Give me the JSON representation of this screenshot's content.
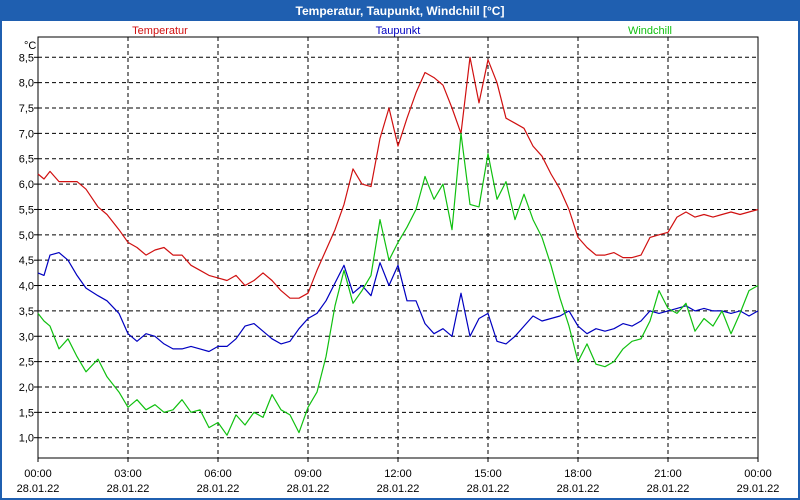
{
  "chart_data": {
    "type": "line",
    "title": "Temperatur, Taupunkt, Windchill [°C]",
    "ylabel": "°C",
    "ylim": [
      0.6,
      8.9
    ],
    "grid": true,
    "yticks": [
      1.0,
      1.5,
      2.0,
      2.5,
      3.0,
      3.5,
      4.0,
      4.5,
      5.0,
      5.5,
      6.0,
      6.5,
      7.0,
      7.5,
      8.0,
      8.5
    ],
    "ytick_labels": [
      "1,0",
      "1,5",
      "2,0",
      "2,5",
      "3,0",
      "3,5",
      "4,0",
      "4,5",
      "5,0",
      "5,5",
      "6,0",
      "6,5",
      "7,0",
      "7,5",
      "8,0",
      "8,5"
    ],
    "xlim": [
      0,
      24
    ],
    "xticks": [
      {
        "h": 0,
        "time": "00:00",
        "date": "28.01.22"
      },
      {
        "h": 3,
        "time": "03:00",
        "date": "28.01.22"
      },
      {
        "h": 6,
        "time": "06:00",
        "date": "28.01.22"
      },
      {
        "h": 9,
        "time": "09:00",
        "date": "28.01.22"
      },
      {
        "h": 12,
        "time": "12:00",
        "date": "28.01.22"
      },
      {
        "h": 15,
        "time": "15:00",
        "date": "28.01.22"
      },
      {
        "h": 18,
        "time": "18:00",
        "date": "28.01.22"
      },
      {
        "h": 21,
        "time": "21:00",
        "date": "28.01.22"
      },
      {
        "h": 24,
        "time": "00:00",
        "date": "29.01.22"
      }
    ],
    "series": [
      {
        "name": "Temperatur",
        "color": "#d01010",
        "x": [
          0,
          0.2,
          0.4,
          0.7,
          1.0,
          1.3,
          1.6,
          2.0,
          2.3,
          2.7,
          3.0,
          3.3,
          3.6,
          3.9,
          4.2,
          4.5,
          4.8,
          5.1,
          5.4,
          5.7,
          6.0,
          6.3,
          6.6,
          6.9,
          7.2,
          7.5,
          7.8,
          8.1,
          8.4,
          8.7,
          9.0,
          9.3,
          9.6,
          9.9,
          10.2,
          10.5,
          10.8,
          11.1,
          11.4,
          11.7,
          12.0,
          12.3,
          12.6,
          12.9,
          13.2,
          13.5,
          13.8,
          14.1,
          14.4,
          14.7,
          15.0,
          15.3,
          15.6,
          15.9,
          16.2,
          16.5,
          16.8,
          17.1,
          17.4,
          17.7,
          18.0,
          18.3,
          18.6,
          18.9,
          19.2,
          19.5,
          19.8,
          20.1,
          20.4,
          20.7,
          21.0,
          21.3,
          21.6,
          21.9,
          22.2,
          22.5,
          22.8,
          23.1,
          23.4,
          23.7,
          24.0
        ],
        "values": [
          6.2,
          6.1,
          6.25,
          6.05,
          6.05,
          6.05,
          5.9,
          5.55,
          5.4,
          5.1,
          4.85,
          4.75,
          4.6,
          4.7,
          4.75,
          4.6,
          4.6,
          4.4,
          4.3,
          4.2,
          4.15,
          4.1,
          4.2,
          4.0,
          4.1,
          4.25,
          4.1,
          3.9,
          3.75,
          3.75,
          3.85,
          4.3,
          4.7,
          5.1,
          5.6,
          6.3,
          6.0,
          5.95,
          6.9,
          7.5,
          6.75,
          7.3,
          7.8,
          8.2,
          8.1,
          7.95,
          7.5,
          7.0,
          8.5,
          7.6,
          8.45,
          8.0,
          7.3,
          7.2,
          7.1,
          6.75,
          6.55,
          6.2,
          5.9,
          5.5,
          4.95,
          4.75,
          4.6,
          4.6,
          4.65,
          4.55,
          4.55,
          4.6,
          4.95,
          5.0,
          5.05,
          5.35,
          5.45,
          5.35,
          5.4,
          5.35,
          5.4,
          5.45,
          5.4,
          5.45,
          5.5
        ]
      },
      {
        "name": "Taupunkt",
        "color": "#0000c0",
        "x": [
          0,
          0.2,
          0.4,
          0.7,
          1.0,
          1.3,
          1.6,
          2.0,
          2.3,
          2.7,
          3.0,
          3.3,
          3.6,
          3.9,
          4.2,
          4.5,
          4.8,
          5.1,
          5.4,
          5.7,
          6.0,
          6.3,
          6.6,
          6.9,
          7.2,
          7.5,
          7.8,
          8.1,
          8.4,
          8.7,
          9.0,
          9.3,
          9.6,
          9.9,
          10.2,
          10.5,
          10.8,
          11.1,
          11.4,
          11.7,
          12.0,
          12.3,
          12.6,
          12.9,
          13.2,
          13.5,
          13.8,
          14.1,
          14.4,
          14.7,
          15.0,
          15.3,
          15.6,
          15.9,
          16.2,
          16.5,
          16.8,
          17.1,
          17.4,
          17.7,
          18.0,
          18.3,
          18.6,
          18.9,
          19.2,
          19.5,
          19.8,
          20.1,
          20.4,
          20.7,
          21.0,
          21.3,
          21.6,
          21.9,
          22.2,
          22.5,
          22.8,
          23.1,
          23.4,
          23.7,
          24.0
        ],
        "values": [
          4.25,
          4.2,
          4.6,
          4.65,
          4.5,
          4.2,
          3.95,
          3.8,
          3.7,
          3.45,
          3.05,
          2.9,
          3.05,
          3.0,
          2.85,
          2.75,
          2.75,
          2.8,
          2.75,
          2.7,
          2.8,
          2.8,
          2.95,
          3.2,
          3.25,
          3.1,
          2.95,
          2.85,
          2.9,
          3.15,
          3.35,
          3.45,
          3.7,
          4.05,
          4.4,
          3.85,
          4.0,
          3.8,
          4.45,
          4.0,
          4.4,
          3.7,
          3.7,
          3.25,
          3.05,
          3.15,
          3.0,
          3.85,
          3.0,
          3.35,
          3.45,
          2.9,
          2.85,
          3.0,
          3.2,
          3.4,
          3.3,
          3.35,
          3.4,
          3.5,
          3.2,
          3.05,
          3.15,
          3.1,
          3.15,
          3.25,
          3.2,
          3.3,
          3.5,
          3.45,
          3.5,
          3.55,
          3.6,
          3.5,
          3.55,
          3.5,
          3.5,
          3.45,
          3.5,
          3.4,
          3.5
        ]
      },
      {
        "name": "Windchill",
        "color": "#10c010",
        "x": [
          0,
          0.2,
          0.4,
          0.7,
          1.0,
          1.3,
          1.6,
          2.0,
          2.3,
          2.7,
          3.0,
          3.3,
          3.6,
          3.9,
          4.2,
          4.5,
          4.8,
          5.1,
          5.4,
          5.7,
          6.0,
          6.3,
          6.6,
          6.9,
          7.2,
          7.5,
          7.8,
          8.1,
          8.4,
          8.7,
          9.0,
          9.3,
          9.6,
          9.9,
          10.2,
          10.5,
          10.8,
          11.1,
          11.4,
          11.7,
          12.0,
          12.3,
          12.6,
          12.9,
          13.2,
          13.5,
          13.8,
          14.1,
          14.4,
          14.7,
          15.0,
          15.3,
          15.6,
          15.9,
          16.2,
          16.5,
          16.8,
          17.1,
          17.4,
          17.7,
          18.0,
          18.3,
          18.6,
          18.9,
          19.2,
          19.5,
          19.8,
          20.1,
          20.4,
          20.7,
          21.0,
          21.3,
          21.6,
          21.9,
          22.2,
          22.5,
          22.8,
          23.1,
          23.4,
          23.7,
          24.0
        ],
        "values": [
          3.45,
          3.3,
          3.2,
          2.75,
          2.95,
          2.6,
          2.3,
          2.55,
          2.2,
          1.9,
          1.6,
          1.75,
          1.55,
          1.65,
          1.5,
          1.55,
          1.75,
          1.5,
          1.55,
          1.2,
          1.3,
          1.05,
          1.45,
          1.25,
          1.5,
          1.4,
          1.85,
          1.55,
          1.45,
          1.1,
          1.6,
          1.9,
          2.6,
          3.6,
          4.3,
          3.65,
          3.9,
          4.2,
          5.3,
          4.5,
          4.85,
          5.15,
          5.5,
          6.15,
          5.7,
          6.0,
          5.1,
          7.0,
          5.6,
          5.55,
          6.6,
          5.7,
          6.05,
          5.3,
          5.8,
          5.3,
          4.95,
          4.4,
          3.75,
          3.2,
          2.5,
          2.85,
          2.45,
          2.4,
          2.5,
          2.75,
          2.9,
          2.95,
          3.3,
          3.9,
          3.55,
          3.45,
          3.65,
          3.1,
          3.35,
          3.2,
          3.5,
          3.05,
          3.45,
          3.9,
          4.0
        ]
      }
    ]
  }
}
